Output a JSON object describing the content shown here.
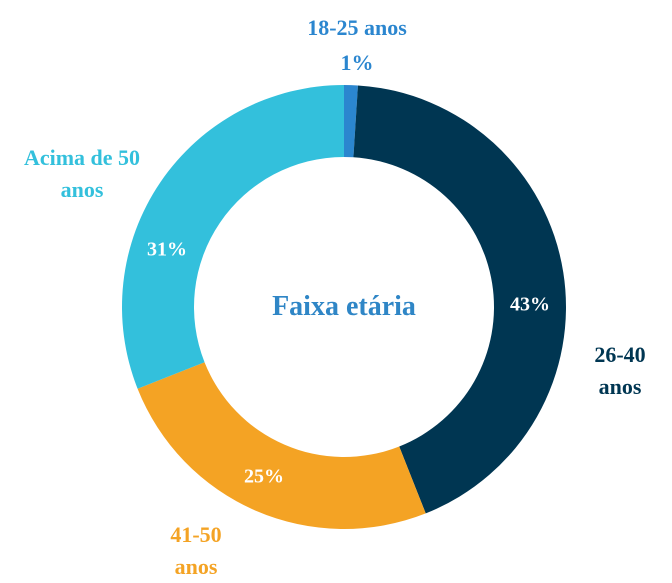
{
  "chart_data": {
    "type": "donut",
    "title": "Faixa etária",
    "categories": [
      "18-25 anos",
      "26-40 anos",
      "41-50 anos",
      "Acima de 50 anos"
    ],
    "values": [
      1,
      43,
      25,
      31
    ],
    "value_labels": [
      "1%",
      "43%",
      "25%",
      "31%"
    ],
    "colors": [
      "#2b86cf",
      "#003652",
      "#f4a324",
      "#33c0dc"
    ]
  }
}
